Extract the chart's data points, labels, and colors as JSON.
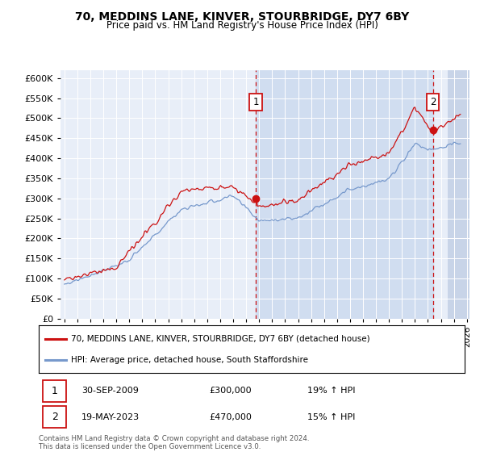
{
  "title": "70, MEDDINS LANE, KINVER, STOURBRIDGE, DY7 6BY",
  "subtitle": "Price paid vs. HM Land Registry's House Price Index (HPI)",
  "background_color": "#ffffff",
  "plot_bg_color": "#e8eef8",
  "red_line_color": "#cc1111",
  "blue_line_color": "#7799cc",
  "highlight_color": "#d0ddf0",
  "annotation_box_color": "#cc1111",
  "legend_line1": "70, MEDDINS LANE, KINVER, STOURBRIDGE, DY7 6BY (detached house)",
  "legend_line2": "HPI: Average price, detached house, South Staffordshire",
  "sale1_label": "1",
  "sale1_date": "30-SEP-2009",
  "sale1_price": "£300,000",
  "sale1_hpi": "19% ↑ HPI",
  "sale2_label": "2",
  "sale2_date": "19-MAY-2023",
  "sale2_price": "£470,000",
  "sale2_hpi": "15% ↑ HPI",
  "footer": "Contains HM Land Registry data © Crown copyright and database right 2024.\nThis data is licensed under the Open Government Licence v3.0.",
  "x_start": 1995.0,
  "x_end": 2026.0,
  "ylim": [
    0,
    620000
  ],
  "yticks": [
    0,
    50000,
    100000,
    150000,
    200000,
    250000,
    300000,
    350000,
    400000,
    450000,
    500000,
    550000,
    600000
  ],
  "sale1_x": 2009.75,
  "sale1_y": 300000,
  "sale2_x": 2023.38,
  "sale2_y": 470000,
  "hatch_start": 2024.5,
  "xtick_years": [
    1995,
    1996,
    1997,
    1998,
    1999,
    2000,
    2001,
    2002,
    2003,
    2004,
    2005,
    2006,
    2007,
    2008,
    2009,
    2010,
    2011,
    2012,
    2013,
    2014,
    2015,
    2016,
    2017,
    2018,
    2019,
    2020,
    2021,
    2022,
    2023,
    2024,
    2025,
    2026
  ]
}
